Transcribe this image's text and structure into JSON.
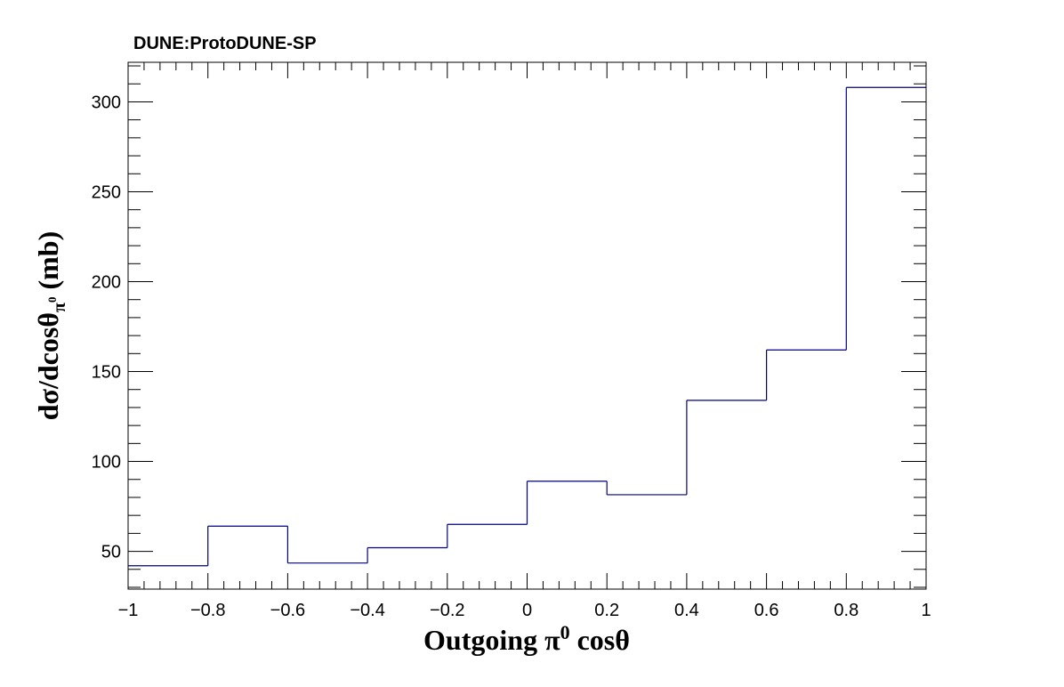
{
  "colors": {
    "series": "#000080",
    "frame": "#000000",
    "background": "#ffffff"
  },
  "chart_data": {
    "type": "histogram",
    "title": "DUNE:ProtoDUNE-SP",
    "xlabel": {
      "prefix": "Outgoing  π",
      "sup": "0",
      "suffix": " cosθ"
    },
    "ylabel": {
      "prefix": "dσ/dcosθ",
      "sub": "π",
      "subsup": "0",
      "suffix": " (mb)"
    },
    "xlim": [
      -1,
      1
    ],
    "ylim": [
      29,
      322
    ],
    "bin_edges": [
      -1.0,
      -0.8,
      -0.6,
      -0.4,
      -0.2,
      0.0,
      0.2,
      0.4,
      0.6,
      0.8,
      1.0
    ],
    "values": [
      42,
      64,
      43.5,
      52,
      65,
      89,
      81.5,
      134,
      162,
      308
    ],
    "x_ticks": [
      -1,
      -0.8,
      -0.6,
      -0.4,
      -0.2,
      0,
      0.2,
      0.4,
      0.6,
      0.8,
      1
    ],
    "x_tick_labels": [
      "−1",
      "−0.8",
      "−0.6",
      "−0.4",
      "−0.2",
      "0",
      "0.2",
      "0.4",
      "0.6",
      "0.8",
      "1"
    ],
    "y_ticks": [
      50,
      100,
      150,
      200,
      250,
      300
    ],
    "y_tick_labels": [
      "50",
      "100",
      "150",
      "200",
      "250",
      "300"
    ],
    "grid": false,
    "legend": "none"
  }
}
